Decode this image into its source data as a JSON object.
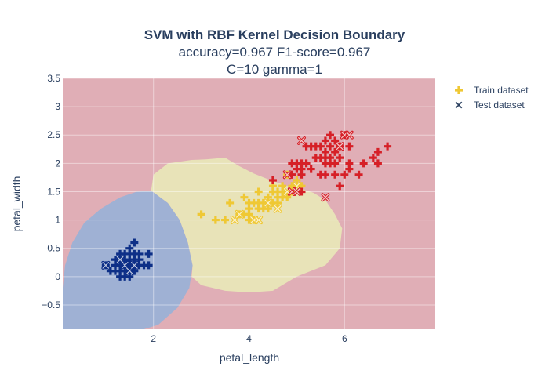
{
  "chart_data": {
    "type": "scatter",
    "title": "SVM with RBF Kernel Decision Boundary",
    "subtitle_lines": [
      "accuracy=0.967 F1-score=0.967",
      "C=10 gamma=1"
    ],
    "xlabel": "petal_length",
    "ylabel": "petal_width",
    "xlim": [
      0.1,
      7.9
    ],
    "ylim": [
      -0.93,
      3.5
    ],
    "x_ticks": [
      2,
      4,
      6
    ],
    "y_ticks": [
      -0.5,
      0,
      0.5,
      1,
      1.5,
      2,
      2.5,
      3,
      3.5
    ],
    "grid": true,
    "legend_position": "top-right",
    "legend": [
      {
        "label": "Train dataset",
        "marker": "cross"
      },
      {
        "label": "Test dataset",
        "marker": "x-open"
      }
    ],
    "colors": {
      "setosa": "#0d2f87",
      "versicolor": "#efc834",
      "virginica": "#d62027",
      "region_setosa": "#9fb1d4",
      "region_versicolor": "#e8e3b8",
      "region_virginica": "#e0aeb6",
      "legend_train": "#efc834",
      "legend_test": "#2a3f5f"
    },
    "decision_regions": [
      {
        "class": "setosa",
        "boundary": [
          [
            0.1,
            -0.2
          ],
          [
            0.15,
            0.2
          ],
          [
            0.3,
            0.6
          ],
          [
            0.55,
            0.95
          ],
          [
            0.9,
            1.2
          ],
          [
            1.3,
            1.4
          ],
          [
            1.65,
            1.5
          ],
          [
            1.95,
            1.52
          ],
          [
            2.3,
            1.3
          ],
          [
            2.55,
            1.0
          ],
          [
            2.72,
            0.6
          ],
          [
            2.82,
            0.2
          ],
          [
            2.75,
            -0.2
          ],
          [
            2.5,
            -0.55
          ],
          [
            2.1,
            -0.85
          ],
          [
            1.8,
            -0.93
          ],
          [
            0.1,
            -0.93
          ]
        ]
      },
      {
        "class": "versicolor",
        "boundary": [
          [
            1.95,
            1.52
          ],
          [
            2.0,
            1.8
          ],
          [
            2.3,
            2.0
          ],
          [
            2.8,
            2.06
          ],
          [
            3.1,
            2.07
          ],
          [
            3.5,
            2.1
          ],
          [
            3.8,
            1.95
          ],
          [
            4.1,
            1.82
          ],
          [
            4.4,
            1.72
          ],
          [
            4.8,
            1.6
          ],
          [
            5.1,
            1.55
          ],
          [
            5.35,
            1.48
          ],
          [
            5.6,
            1.35
          ],
          [
            5.8,
            1.1
          ],
          [
            5.95,
            0.85
          ],
          [
            5.9,
            0.5
          ],
          [
            5.6,
            0.2
          ],
          [
            5.0,
            0.0
          ],
          [
            4.5,
            -0.25
          ],
          [
            4.0,
            -0.28
          ],
          [
            3.5,
            -0.25
          ],
          [
            3.0,
            -0.15
          ],
          [
            2.8,
            0.0
          ],
          [
            2.82,
            0.2
          ],
          [
            2.72,
            0.6
          ],
          [
            2.55,
            1.0
          ],
          [
            2.3,
            1.3
          ]
        ]
      }
    ],
    "series": [
      {
        "name": "Train dataset",
        "class": "setosa",
        "marker": "cross",
        "points": [
          [
            1.4,
            0.2
          ],
          [
            1.3,
            0.2
          ],
          [
            1.5,
            0.2
          ],
          [
            1.4,
            0.4
          ],
          [
            1.5,
            0.1
          ],
          [
            1.6,
            0.2
          ],
          [
            1.4,
            0.1
          ],
          [
            1.1,
            0.1
          ],
          [
            1.2,
            0.2
          ],
          [
            1.5,
            0.4
          ],
          [
            1.3,
            0.4
          ],
          [
            1.4,
            0.3
          ],
          [
            1.7,
            0.3
          ],
          [
            1.5,
            0.3
          ],
          [
            1.7,
            0.2
          ],
          [
            1.5,
            0.5
          ],
          [
            1.9,
            0.2
          ],
          [
            1.6,
            0.4
          ],
          [
            1.6,
            0.6
          ],
          [
            1.9,
            0.4
          ],
          [
            1.6,
            0.3
          ],
          [
            1.2,
            0.3
          ],
          [
            1.3,
            0.3
          ],
          [
            1.0,
            0.2
          ],
          [
            1.3,
            0.1
          ],
          [
            1.6,
            0.1
          ],
          [
            1.4,
            0.0
          ],
          [
            1.7,
            0.4
          ],
          [
            1.3,
            0.0
          ],
          [
            1.5,
            0.0
          ],
          [
            1.8,
            0.2
          ],
          [
            1.2,
            0.1
          ],
          [
            1.45,
            0.25
          ]
        ]
      },
      {
        "name": "Train dataset",
        "class": "versicolor",
        "marker": "cross",
        "points": [
          [
            3.0,
            1.1
          ],
          [
            3.3,
            1.0
          ],
          [
            3.5,
            1.0
          ],
          [
            3.6,
            1.3
          ],
          [
            3.9,
            1.4
          ],
          [
            3.9,
            1.1
          ],
          [
            4.0,
            1.3
          ],
          [
            4.0,
            1.0
          ],
          [
            4.0,
            1.2
          ],
          [
            4.1,
            1.3
          ],
          [
            4.2,
            1.3
          ],
          [
            4.2,
            1.2
          ],
          [
            4.3,
            1.3
          ],
          [
            4.4,
            1.4
          ],
          [
            4.4,
            1.3
          ],
          [
            4.5,
            1.5
          ],
          [
            4.5,
            1.3
          ],
          [
            4.6,
            1.4
          ],
          [
            4.6,
            1.5
          ],
          [
            4.7,
            1.4
          ],
          [
            4.7,
            1.6
          ],
          [
            4.8,
            1.4
          ],
          [
            4.8,
            1.8
          ],
          [
            4.9,
            1.5
          ],
          [
            5.0,
            1.7
          ],
          [
            5.1,
            1.6
          ],
          [
            4.2,
            1.5
          ],
          [
            4.3,
            1.2
          ],
          [
            4.1,
            1.0
          ],
          [
            4.5,
            1.6
          ],
          [
            4.4,
            1.2
          ],
          [
            4.6,
            1.3
          ],
          [
            3.8,
            1.1
          ],
          [
            4.9,
            1.6
          ],
          [
            4.7,
            1.5
          ],
          [
            4.0,
            1.1
          ]
        ]
      },
      {
        "name": "Train dataset",
        "class": "virginica",
        "marker": "cross",
        "points": [
          [
            4.5,
            1.7
          ],
          [
            4.9,
            1.8
          ],
          [
            5.0,
            2.0
          ],
          [
            5.1,
            1.5
          ],
          [
            5.1,
            1.8
          ],
          [
            5.1,
            2.0
          ],
          [
            5.2,
            2.0
          ],
          [
            5.3,
            1.9
          ],
          [
            5.4,
            2.1
          ],
          [
            5.5,
            1.8
          ],
          [
            5.5,
            2.1
          ],
          [
            5.6,
            1.8
          ],
          [
            5.6,
            2.1
          ],
          [
            5.6,
            2.4
          ],
          [
            5.7,
            2.1
          ],
          [
            5.7,
            2.5
          ],
          [
            5.8,
            1.8
          ],
          [
            5.8,
            2.2
          ],
          [
            5.9,
            2.1
          ],
          [
            5.9,
            2.3
          ],
          [
            6.0,
            1.8
          ],
          [
            6.0,
            2.5
          ],
          [
            6.1,
            2.3
          ],
          [
            6.1,
            1.9
          ],
          [
            6.3,
            1.8
          ],
          [
            6.4,
            2.0
          ],
          [
            6.6,
            2.1
          ],
          [
            6.7,
            2.0
          ],
          [
            6.7,
            2.2
          ],
          [
            6.9,
            2.3
          ],
          [
            5.2,
            2.3
          ],
          [
            5.3,
            2.3
          ],
          [
            5.4,
            2.3
          ],
          [
            5.5,
            2.3
          ],
          [
            5.6,
            2.2
          ],
          [
            5.7,
            2.3
          ],
          [
            5.8,
            2.4
          ],
          [
            5.9,
            1.6
          ],
          [
            4.9,
            1.8
          ],
          [
            4.9,
            2.0
          ],
          [
            5.0,
            1.9
          ],
          [
            5.1,
            1.9
          ],
          [
            5.6,
            2.0
          ],
          [
            5.7,
            2.0
          ],
          [
            5.8,
            2.0
          ],
          [
            6.1,
            2.0
          ]
        ]
      },
      {
        "name": "Test dataset",
        "class": "setosa",
        "marker": "x-open",
        "points": [
          [
            1.0,
            0.2
          ],
          [
            1.4,
            0.2
          ],
          [
            1.5,
            0.1
          ],
          [
            1.6,
            0.2
          ],
          [
            1.3,
            0.3
          ]
        ]
      },
      {
        "name": "Test dataset",
        "class": "versicolor",
        "marker": "x-open",
        "points": [
          [
            3.7,
            1.0
          ],
          [
            4.1,
            1.0
          ],
          [
            4.2,
            1.0
          ],
          [
            4.4,
            1.3
          ],
          [
            4.6,
            1.2
          ],
          [
            4.8,
            1.5
          ],
          [
            5.0,
            1.6
          ],
          [
            3.8,
            1.1
          ]
        ]
      },
      {
        "name": "Test dataset",
        "class": "virginica",
        "marker": "x-open",
        "points": [
          [
            4.9,
            1.5
          ],
          [
            5.1,
            2.4
          ],
          [
            5.6,
            1.4
          ],
          [
            5.9,
            2.3
          ],
          [
            6.0,
            2.5
          ],
          [
            6.1,
            2.5
          ],
          [
            4.8,
            1.8
          ],
          [
            5.0,
            1.5
          ]
        ]
      }
    ]
  }
}
